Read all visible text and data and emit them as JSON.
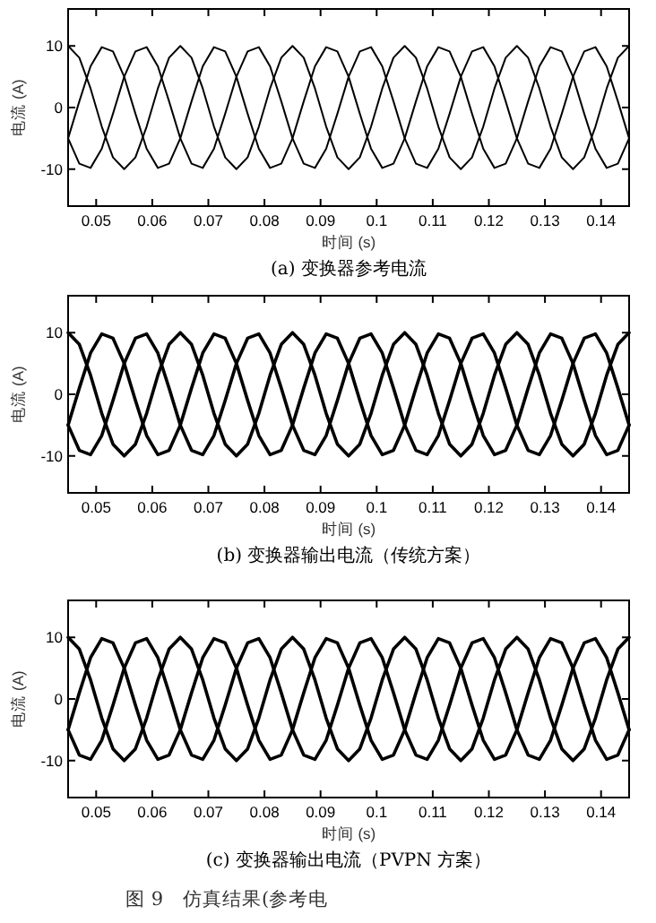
{
  "chart_data": [
    {
      "type": "line",
      "title": "(a) 变换器参考电流",
      "xlabel": "时间 (s)",
      "ylabel": "电流 (A)",
      "xlim": [
        0.045,
        0.145
      ],
      "ylim": [
        -16,
        16
      ],
      "xticks": [
        0.05,
        0.06,
        0.07,
        0.08,
        0.09,
        0.1,
        0.11,
        0.12,
        0.13,
        0.14
      ],
      "yticks": [
        -10,
        0,
        10
      ],
      "x": [
        0.045,
        0.047,
        0.049,
        0.051,
        0.053,
        0.055,
        0.057,
        0.059,
        0.061,
        0.063,
        0.065,
        0.067,
        0.069,
        0.071,
        0.073,
        0.075,
        0.077,
        0.079,
        0.081,
        0.083,
        0.085,
        0.087,
        0.089,
        0.091,
        0.093,
        0.095,
        0.097,
        0.099,
        0.101,
        0.103,
        0.105,
        0.107,
        0.109,
        0.111,
        0.113,
        0.115,
        0.117,
        0.119,
        0.121,
        0.123,
        0.125,
        0.127,
        0.129,
        0.131,
        0.133,
        0.135,
        0.137,
        0.139,
        0.141,
        0.143,
        0.145
      ],
      "series": [
        {
          "color": "#000000",
          "values": [
            10,
            8.1,
            3.1,
            -3.1,
            -8.1,
            -10,
            -8.1,
            -3.1,
            3.1,
            8.1,
            10,
            8.1,
            3.1,
            -3.1,
            -8.1,
            -10,
            -8.1,
            -3.1,
            3.1,
            8.1,
            10,
            8.1,
            3.1,
            -3.1,
            -8.1,
            -10,
            -8.1,
            -3.1,
            3.1,
            8.1,
            10,
            8.1,
            3.1,
            -3.1,
            -8.1,
            -10,
            -8.1,
            -3.1,
            3.1,
            8.1,
            10,
            8.1,
            3.1,
            -3.1,
            -8.1,
            -10,
            -8.1,
            -3.1,
            3.1,
            8.1,
            10
          ]
        },
        {
          "color": "#000000",
          "values": [
            -5,
            1,
            6.7,
            9.8,
            9.1,
            5,
            -1,
            -6.7,
            -9.8,
            -9.1,
            -5,
            1,
            6.7,
            9.8,
            9.1,
            5,
            -1,
            -6.7,
            -9.8,
            -9.1,
            -5,
            1,
            6.7,
            9.8,
            9.1,
            5,
            -1,
            -6.7,
            -9.8,
            -9.1,
            -5,
            1,
            6.7,
            9.8,
            9.1,
            5,
            -1,
            -6.7,
            -9.8,
            -9.1,
            -5,
            1,
            6.7,
            9.8,
            9.1,
            5,
            -1,
            -6.7,
            -9.8,
            -9.1,
            -5
          ]
        },
        {
          "color": "#000000",
          "values": [
            -5,
            -9.1,
            -9.8,
            -6.7,
            -1,
            5,
            9.1,
            9.8,
            6.7,
            1,
            -5,
            -9.1,
            -9.8,
            -6.7,
            -1,
            5,
            9.1,
            9.8,
            6.7,
            1,
            -5,
            -9.1,
            -9.8,
            -6.7,
            -1,
            5,
            9.1,
            9.8,
            6.7,
            1,
            -5,
            -9.1,
            -9.8,
            -6.7,
            -1,
            5,
            9.1,
            9.8,
            6.7,
            1,
            -5,
            -9.1,
            -9.8,
            -6.7,
            -1,
            5,
            9.1,
            9.8,
            6.7,
            1,
            -5
          ]
        }
      ]
    },
    {
      "type": "line",
      "title": "(b) 变换器输出电流（传统方案）",
      "xlabel": "时间 (s)",
      "ylabel": "电流 (A)",
      "xlim": [
        0.045,
        0.145
      ],
      "ylim": [
        -16,
        16
      ],
      "xticks": [
        0.05,
        0.06,
        0.07,
        0.08,
        0.09,
        0.1,
        0.11,
        0.12,
        0.13,
        0.14
      ],
      "yticks": [
        -10,
        0,
        10
      ],
      "x": [
        0.045,
        0.047,
        0.049,
        0.051,
        0.053,
        0.055,
        0.057,
        0.059,
        0.061,
        0.063,
        0.065,
        0.067,
        0.069,
        0.071,
        0.073,
        0.075,
        0.077,
        0.079,
        0.081,
        0.083,
        0.085,
        0.087,
        0.089,
        0.091,
        0.093,
        0.095,
        0.097,
        0.099,
        0.101,
        0.103,
        0.105,
        0.107,
        0.109,
        0.111,
        0.113,
        0.115,
        0.117,
        0.119,
        0.121,
        0.123,
        0.125,
        0.127,
        0.129,
        0.131,
        0.133,
        0.135,
        0.137,
        0.139,
        0.141,
        0.143,
        0.145
      ],
      "series": [
        {
          "color": "#000000",
          "values": [
            10,
            8.1,
            3.1,
            -3.1,
            -8.1,
            -10,
            -8.1,
            -3.1,
            3.1,
            8.1,
            10,
            8.1,
            3.1,
            -3.1,
            -8.1,
            -10,
            -8.1,
            -3.1,
            3.1,
            8.1,
            10,
            8.1,
            3.1,
            -3.1,
            -8.1,
            -10,
            -8.1,
            -3.1,
            3.1,
            8.1,
            10,
            8.1,
            3.1,
            -3.1,
            -8.1,
            -10,
            -8.1,
            -3.1,
            3.1,
            8.1,
            10,
            8.1,
            3.1,
            -3.1,
            -8.1,
            -10,
            -8.1,
            -3.1,
            3.1,
            8.1,
            10
          ]
        },
        {
          "color": "#000000",
          "values": [
            -5,
            1,
            6.7,
            9.8,
            9.1,
            5,
            -1,
            -6.7,
            -9.8,
            -9.1,
            -5,
            1,
            6.7,
            9.8,
            9.1,
            5,
            -1,
            -6.7,
            -9.8,
            -9.1,
            -5,
            1,
            6.7,
            9.8,
            9.1,
            5,
            -1,
            -6.7,
            -9.8,
            -9.1,
            -5,
            1,
            6.7,
            9.8,
            9.1,
            5,
            -1,
            -6.7,
            -9.8,
            -9.1,
            -5,
            1,
            6.7,
            9.8,
            9.1,
            5,
            -1,
            -6.7,
            -9.8,
            -9.1,
            -5
          ]
        },
        {
          "color": "#000000",
          "values": [
            -5,
            -9.1,
            -9.8,
            -6.7,
            -1,
            5,
            9.1,
            9.8,
            6.7,
            1,
            -5,
            -9.1,
            -9.8,
            -6.7,
            -1,
            5,
            9.1,
            9.8,
            6.7,
            1,
            -5,
            -9.1,
            -9.8,
            -6.7,
            -1,
            5,
            9.1,
            9.8,
            6.7,
            1,
            -5,
            -9.1,
            -9.8,
            -6.7,
            -1,
            5,
            9.1,
            9.8,
            6.7,
            1,
            -5,
            -9.1,
            -9.8,
            -6.7,
            -1,
            5,
            9.1,
            9.8,
            6.7,
            1,
            -5
          ]
        }
      ]
    },
    {
      "type": "line",
      "title": "(c) 变换器输出电流（PVPN 方案）",
      "xlabel": "时间 (s)",
      "ylabel": "电流 (A)",
      "xlim": [
        0.045,
        0.145
      ],
      "ylim": [
        -16,
        16
      ],
      "xticks": [
        0.05,
        0.06,
        0.07,
        0.08,
        0.09,
        0.1,
        0.11,
        0.12,
        0.13,
        0.14
      ],
      "yticks": [
        -10,
        0,
        10
      ],
      "annotations": [
        "图 9　仿真结果(参考电"
      ],
      "x": [
        0.045,
        0.047,
        0.049,
        0.051,
        0.053,
        0.055,
        0.057,
        0.059,
        0.061,
        0.063,
        0.065,
        0.067,
        0.069,
        0.071,
        0.073,
        0.075,
        0.077,
        0.079,
        0.081,
        0.083,
        0.085,
        0.087,
        0.089,
        0.091,
        0.093,
        0.095,
        0.097,
        0.099,
        0.101,
        0.103,
        0.105,
        0.107,
        0.109,
        0.111,
        0.113,
        0.115,
        0.117,
        0.119,
        0.121,
        0.123,
        0.125,
        0.127,
        0.129,
        0.131,
        0.133,
        0.135,
        0.137,
        0.139,
        0.141,
        0.143,
        0.145
      ],
      "series": [
        {
          "color": "#000000",
          "values": [
            10,
            8.1,
            3.1,
            -3.1,
            -8.1,
            -10,
            -8.1,
            -3.1,
            3.1,
            8.1,
            10,
            8.1,
            3.1,
            -3.1,
            -8.1,
            -10,
            -8.1,
            -3.1,
            3.1,
            8.1,
            10,
            8.1,
            3.1,
            -3.1,
            -8.1,
            -10,
            -8.1,
            -3.1,
            3.1,
            8.1,
            10,
            8.1,
            3.1,
            -3.1,
            -8.1,
            -10,
            -8.1,
            -3.1,
            3.1,
            8.1,
            10,
            8.1,
            3.1,
            -3.1,
            -8.1,
            -10,
            -8.1,
            -3.1,
            3.1,
            8.1,
            10
          ]
        },
        {
          "color": "#000000",
          "values": [
            -5,
            1,
            6.7,
            9.8,
            9.1,
            5,
            -1,
            -6.7,
            -9.8,
            -9.1,
            -5,
            1,
            6.7,
            9.8,
            9.1,
            5,
            -1,
            -6.7,
            -9.8,
            -9.1,
            -5,
            1,
            6.7,
            9.8,
            9.1,
            5,
            -1,
            -6.7,
            -9.8,
            -9.1,
            -5,
            1,
            6.7,
            9.8,
            9.1,
            5,
            -1,
            -6.7,
            -9.8,
            -9.1,
            -5,
            1,
            6.7,
            9.8,
            9.1,
            5,
            -1,
            -6.7,
            -9.8,
            -9.1,
            -5
          ]
        },
        {
          "color": "#000000",
          "values": [
            -5,
            -9.1,
            -9.8,
            -6.7,
            -1,
            5,
            9.1,
            9.8,
            6.7,
            1,
            -5,
            -9.1,
            -9.8,
            -6.7,
            -1,
            5,
            9.1,
            9.8,
            6.7,
            1,
            -5,
            -9.1,
            -9.8,
            -6.7,
            -1,
            5,
            9.1,
            9.8,
            6.7,
            1,
            -5,
            -9.1,
            -9.8,
            -6.7,
            -1,
            5,
            9.1,
            9.8,
            6.7,
            1,
            -5,
            -9.1,
            -9.8,
            -6.7,
            -1,
            5,
            9.1,
            9.8,
            6.7,
            1,
            -5
          ]
        }
      ]
    }
  ]
}
